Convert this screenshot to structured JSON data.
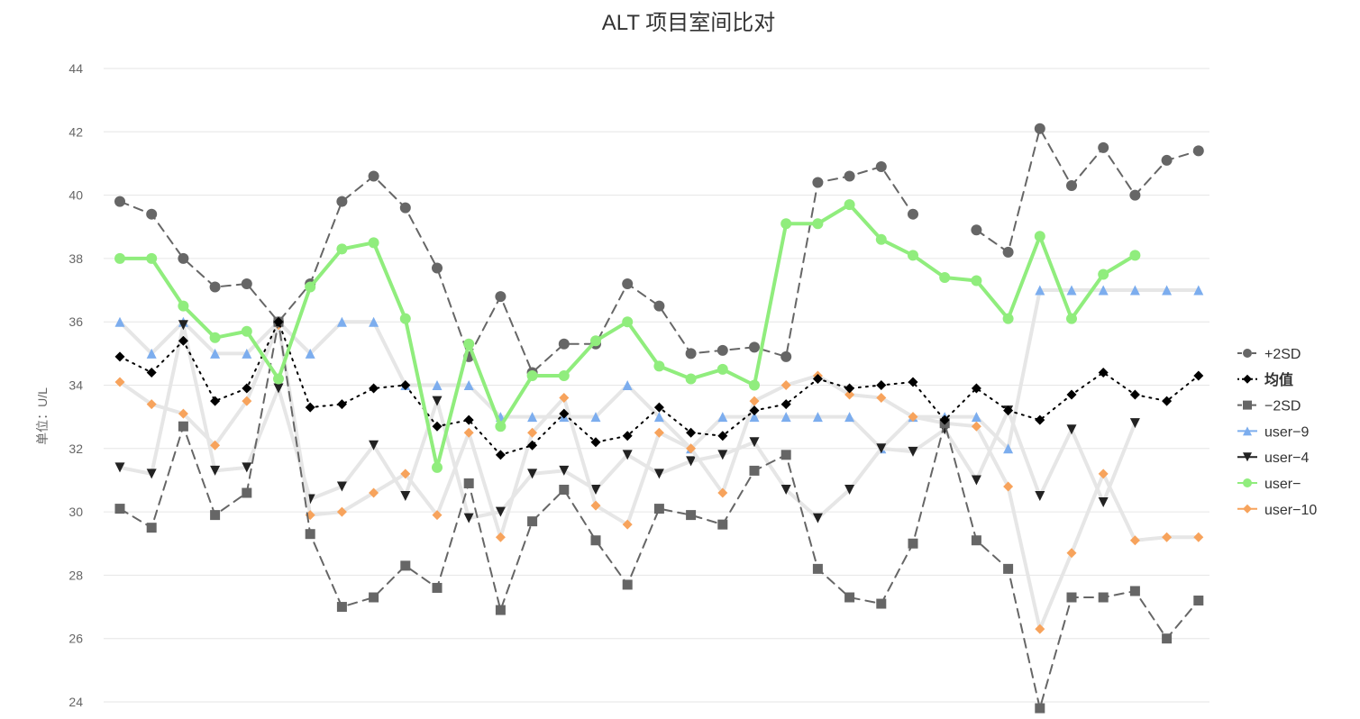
{
  "chart_data": {
    "type": "line",
    "title": "ALT 项目室间比对",
    "ylabel": "单位：U/L",
    "xlabel": "",
    "ylim": [
      24,
      44
    ],
    "yticks": [
      24,
      26,
      28,
      30,
      32,
      34,
      36,
      38,
      40,
      42,
      44
    ],
    "grid": true,
    "legend_position": "right",
    "x": [
      1,
      2,
      3,
      4,
      5,
      6,
      7,
      8,
      9,
      10,
      11,
      12,
      13,
      14,
      15,
      16,
      17,
      18,
      19,
      20,
      21,
      22,
      23,
      24,
      25,
      26,
      27,
      28,
      29,
      30,
      31,
      32,
      33,
      34,
      35,
      36
    ],
    "series": [
      {
        "name": "+2SD",
        "color": "#666666",
        "line_style": "dashed",
        "marker": "circle",
        "line_width": 2,
        "values": [
          39.8,
          39.4,
          38.0,
          37.1,
          37.2,
          36.0,
          37.2,
          39.8,
          40.6,
          39.6,
          37.7,
          34.9,
          36.8,
          34.4,
          35.3,
          35.3,
          37.2,
          36.5,
          35.0,
          35.1,
          35.2,
          34.9,
          40.4,
          40.6,
          40.9,
          39.4,
          null,
          38.9,
          38.2,
          42.1,
          40.3,
          41.5,
          40.0,
          41.1,
          41.4,
          null
        ]
      },
      {
        "name": "均值",
        "color": "#000000",
        "line_style": "dotted",
        "marker": "diamond",
        "line_width": 2,
        "values": [
          34.9,
          34.4,
          35.4,
          33.5,
          33.9,
          36.0,
          33.3,
          33.4,
          33.9,
          34.0,
          32.7,
          32.9,
          31.8,
          32.1,
          33.1,
          32.2,
          32.4,
          33.3,
          32.5,
          32.4,
          33.2,
          33.4,
          34.2,
          33.9,
          34.0,
          34.1,
          32.9,
          33.9,
          33.2,
          32.9,
          33.7,
          34.4,
          33.7,
          33.5,
          34.3,
          null
        ]
      },
      {
        "name": "−2SD",
        "color": "#666666",
        "line_style": "dashed",
        "marker": "square",
        "line_width": 2,
        "values": [
          30.1,
          29.5,
          32.7,
          29.9,
          30.6,
          36.0,
          29.3,
          27.0,
          27.3,
          28.3,
          27.6,
          30.9,
          26.9,
          29.7,
          30.7,
          29.1,
          27.7,
          30.1,
          29.9,
          29.6,
          31.3,
          31.8,
          28.2,
          27.3,
          27.1,
          29.0,
          32.8,
          29.1,
          28.2,
          23.8,
          27.3,
          27.3,
          27.5,
          26.0,
          27.2,
          null
        ]
      },
      {
        "name": "user−9",
        "color": "#7cadee",
        "line_style": "solid",
        "line_color": "#e6e6e6",
        "marker": "triangle",
        "line_width": 4,
        "values": [
          36,
          35,
          36,
          35,
          35,
          36,
          35,
          36,
          36,
          34,
          34,
          34,
          33,
          33,
          33,
          33,
          34,
          33,
          32,
          33,
          33,
          33,
          33,
          33,
          32,
          33,
          33,
          33,
          32,
          37,
          37,
          37,
          37,
          37,
          37,
          null
        ]
      },
      {
        "name": "user−4",
        "color": "#222222",
        "line_style": "solid",
        "line_color": "#e6e6e6",
        "marker": "triangle-down",
        "line_width": 4,
        "values": [
          31.4,
          31.2,
          35.9,
          31.3,
          31.4,
          33.9,
          30.4,
          30.8,
          32.1,
          30.5,
          33.5,
          29.8,
          30.0,
          31.2,
          31.3,
          30.7,
          31.8,
          31.2,
          31.6,
          31.8,
          32.2,
          30.7,
          29.8,
          30.7,
          32.0,
          31.9,
          32.6,
          31.0,
          33.2,
          30.5,
          32.6,
          30.3,
          32.8,
          null,
          null,
          null
        ]
      },
      {
        "name": "user−",
        "color": "#90ed7d",
        "line_style": "solid",
        "marker": "circle",
        "line_width": 4,
        "values": [
          38.0,
          38.0,
          36.5,
          35.5,
          35.7,
          34.2,
          37.1,
          38.3,
          38.5,
          36.1,
          31.4,
          35.3,
          32.7,
          34.3,
          34.3,
          35.4,
          36.0,
          34.6,
          34.2,
          34.5,
          34.0,
          39.1,
          39.1,
          39.7,
          38.6,
          38.1,
          37.4,
          37.3,
          36.1,
          38.7,
          36.1,
          37.5,
          38.1,
          null,
          null,
          null
        ]
      },
      {
        "name": "user−10",
        "color": "#f7a35c",
        "line_style": "solid",
        "line_color": "#e6e6e6",
        "marker": "diamond",
        "line_width": 4,
        "values": [
          34.1,
          33.4,
          33.1,
          32.1,
          33.5,
          35.9,
          29.9,
          30.0,
          30.6,
          31.2,
          29.9,
          32.5,
          29.2,
          32.5,
          33.6,
          30.2,
          29.6,
          32.5,
          32.0,
          30.6,
          33.5,
          34.0,
          34.3,
          33.7,
          33.6,
          33.0,
          32.8,
          32.7,
          30.8,
          26.3,
          28.7,
          31.2,
          29.1,
          29.2,
          29.2,
          null
        ]
      }
    ]
  }
}
